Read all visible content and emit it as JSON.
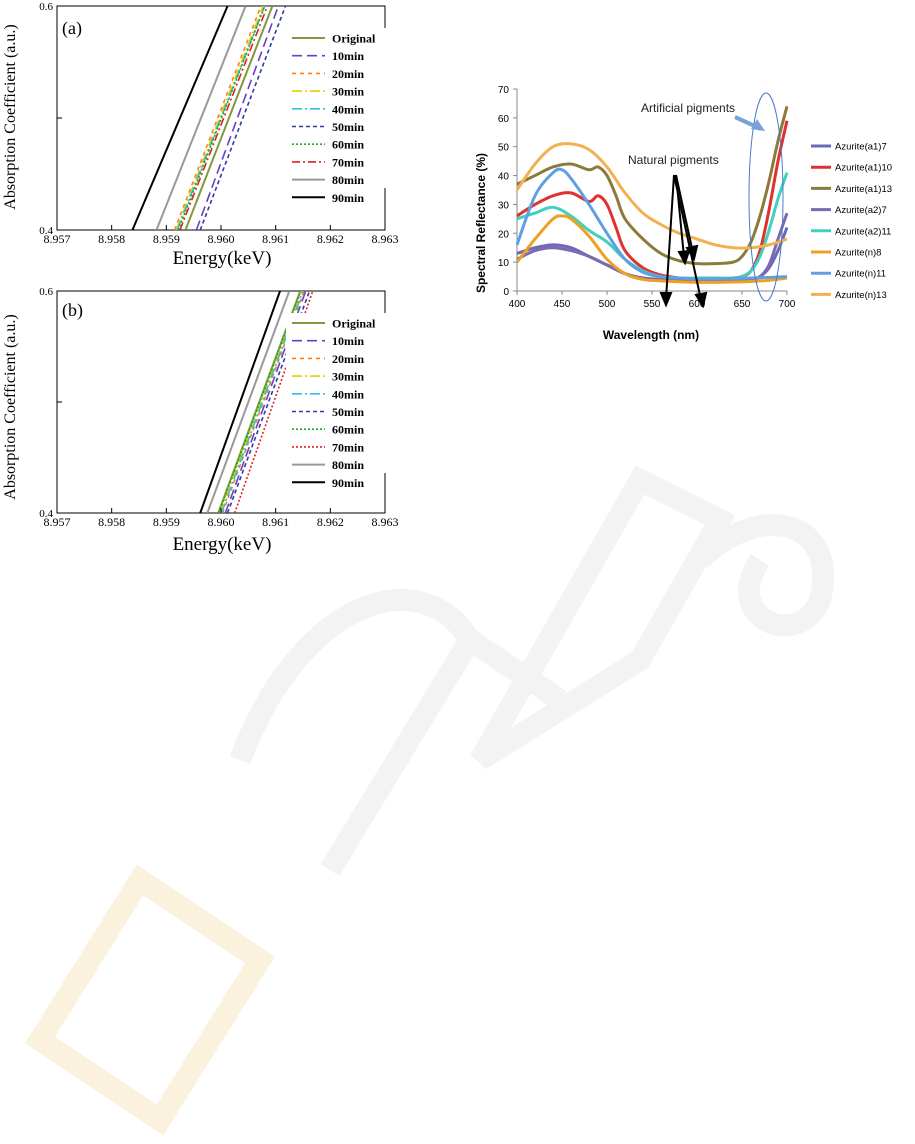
{
  "chart_data": [
    {
      "type": "line",
      "panel_label": "(a)",
      "xlabel": "Energy(keV)",
      "ylabel": "Absorption Coefficient (a.u.)",
      "xlim": [
        8.957,
        8.963
      ],
      "ylim": [
        0.4,
        0.6
      ],
      "x_ticks": [
        "8.957",
        "8.958",
        "8.959",
        "8.960",
        "8.961",
        "8.962",
        "8.963"
      ],
      "y_ticks": [
        "0.4",
        "0.6"
      ],
      "legend_position": "right",
      "series": [
        {
          "name": "Original",
          "x": [
            8.95935,
            8.96094
          ],
          "y": [
            0.4,
            0.6
          ],
          "color": "#7f9a3c",
          "dash": "solid",
          "width": 2
        },
        {
          "name": "10min",
          "x": [
            8.95955,
            8.96105
          ],
          "y": [
            0.4,
            0.6
          ],
          "color": "#6a3fc8",
          "dash": "10,5",
          "width": 1.6
        },
        {
          "name": "20min",
          "x": [
            8.95915,
            8.96073
          ],
          "y": [
            0.4,
            0.6
          ],
          "color": "#ff7f1e",
          "dash": "4,4",
          "width": 1.6
        },
        {
          "name": "30min",
          "x": [
            8.95918,
            8.96077
          ],
          "y": [
            0.4,
            0.6
          ],
          "color": "#e0d000",
          "dash": "10,3,2,3",
          "width": 1.6
        },
        {
          "name": "40min",
          "x": [
            8.9592,
            8.9608
          ],
          "y": [
            0.4,
            0.6
          ],
          "color": "#30c0e0",
          "dash": "10,3,2,3",
          "width": 1.6
        },
        {
          "name": "50min",
          "x": [
            8.95962,
            8.96118
          ],
          "y": [
            0.4,
            0.6
          ],
          "color": "#2a3f9e",
          "dash": "4,3",
          "width": 1.6
        },
        {
          "name": "60min",
          "x": [
            8.95922,
            8.9608
          ],
          "y": [
            0.4,
            0.6
          ],
          "color": "#22a822",
          "dash": "2,2",
          "width": 1.6
        },
        {
          "name": "70min",
          "x": [
            8.95925,
            8.96085
          ],
          "y": [
            0.4,
            0.6
          ],
          "color": "#e02020",
          "dash": "8,3,2,3",
          "width": 1.6
        },
        {
          "name": "80min",
          "x": [
            8.95882,
            8.96045
          ],
          "y": [
            0.4,
            0.6
          ],
          "color": "#999999",
          "dash": "solid",
          "width": 2
        },
        {
          "name": "90min",
          "x": [
            8.95838,
            8.96012
          ],
          "y": [
            0.4,
            0.6
          ],
          "color": "#000000",
          "dash": "solid",
          "width": 2
        }
      ]
    },
    {
      "type": "line",
      "panel_label": "(b)",
      "xlabel": "Energy(keV)",
      "ylabel": "Absorption Coefficient (a.u.)",
      "xlim": [
        8.957,
        8.963
      ],
      "ylim": [
        0.4,
        0.6
      ],
      "x_ticks": [
        "8.957",
        "8.958",
        "8.959",
        "8.960",
        "8.961",
        "8.962",
        "8.963"
      ],
      "y_ticks": [
        "0.4",
        "0.6"
      ],
      "legend_position": "right",
      "series": [
        {
          "name": "Original",
          "x": [
            8.95995,
            8.96145
          ],
          "y": [
            0.4,
            0.6
          ],
          "color": "#7f9a3c",
          "dash": "solid",
          "width": 2
        },
        {
          "name": "10min",
          "x": [
            8.96008,
            8.96155
          ],
          "y": [
            0.4,
            0.6
          ],
          "color": "#6a3fc8",
          "dash": "10,5",
          "width": 1.6
        },
        {
          "name": "20min",
          "x": [
            8.96003,
            8.96152
          ],
          "y": [
            0.4,
            0.6
          ],
          "color": "#ff7f1e",
          "dash": "4,4",
          "width": 1.6
        },
        {
          "name": "30min",
          "x": [
            8.95998,
            8.96148
          ],
          "y": [
            0.4,
            0.6
          ],
          "color": "#e0d000",
          "dash": "10,3,2,3",
          "width": 1.6
        },
        {
          "name": "40min",
          "x": [
            8.96001,
            8.9615
          ],
          "y": [
            0.4,
            0.6
          ],
          "color": "#30c0e0",
          "dash": "10,3,2,3",
          "width": 1.6
        },
        {
          "name": "50min",
          "x": [
            8.96012,
            8.96162
          ],
          "y": [
            0.4,
            0.6
          ],
          "color": "#2a3f9e",
          "dash": "4,3",
          "width": 1.6
        },
        {
          "name": "60min",
          "x": [
            8.95996,
            8.96146
          ],
          "y": [
            0.4,
            0.6
          ],
          "color": "#22a822",
          "dash": "2,2",
          "width": 1.6
        },
        {
          "name": "70min",
          "x": [
            8.96025,
            8.96168
          ],
          "y": [
            0.4,
            0.6
          ],
          "color": "#e02020",
          "dash": "2,2",
          "width": 1.6
        },
        {
          "name": "80min",
          "x": [
            8.95975,
            8.96125
          ],
          "y": [
            0.4,
            0.6
          ],
          "color": "#999999",
          "dash": "solid",
          "width": 2
        },
        {
          "name": "90min",
          "x": [
            8.95962,
            8.96108
          ],
          "y": [
            0.4,
            0.6
          ],
          "color": "#000000",
          "dash": "solid",
          "width": 2
        }
      ]
    },
    {
      "type": "line",
      "xlabel": "Wavelength (nm)",
      "ylabel": "Spectral Reflectance  (%)",
      "xlim": [
        400,
        700
      ],
      "ylim": [
        0,
        70
      ],
      "x_ticks": [
        "400",
        "450",
        "500",
        "550",
        "600",
        "650",
        "700"
      ],
      "y_ticks": [
        "0",
        "10",
        "20",
        "30",
        "40",
        "50",
        "60",
        "70"
      ],
      "legend_position": "right",
      "annotations": [
        {
          "text": "Artificial pigments"
        },
        {
          "text": "Natural pigments"
        }
      ],
      "series": [
        {
          "name": "Azurite(a1)7",
          "color": "#6a6ab8",
          "x": [
            400,
            420,
            440,
            460,
            480,
            500,
            520,
            540,
            560,
            580,
            600,
            620,
            640,
            660,
            670,
            680,
            690,
            700
          ],
          "y": [
            13,
            15,
            16,
            15,
            12,
            9,
            6,
            4.5,
            4,
            3.8,
            3.8,
            3.8,
            3.8,
            4,
            5,
            8,
            14,
            22
          ]
        },
        {
          "name": "Azurite(a1)10",
          "color": "#e03030",
          "x": [
            400,
            420,
            440,
            460,
            480,
            490,
            500,
            510,
            520,
            540,
            560,
            580,
            600,
            620,
            640,
            650,
            660,
            670,
            680,
            690,
            700
          ],
          "y": [
            26,
            30,
            33,
            34,
            31,
            33,
            30,
            22,
            14,
            8,
            5.5,
            4.5,
            4,
            4,
            4.5,
            5,
            7,
            14,
            28,
            45,
            59
          ]
        },
        {
          "name": "Azurite(a1)13",
          "color": "#8b7a3a",
          "x": [
            400,
            420,
            440,
            460,
            480,
            490,
            500,
            510,
            520,
            540,
            560,
            580,
            600,
            620,
            640,
            650,
            660,
            670,
            680,
            690,
            700
          ],
          "y": [
            37,
            40,
            43,
            44,
            42,
            43,
            40,
            33,
            25,
            18,
            13,
            10.5,
            9.5,
            9.5,
            10,
            12,
            17,
            26,
            38,
            52,
            64
          ]
        },
        {
          "name": "Azurite(a2)7",
          "color": "#7a6ab0",
          "x": [
            400,
            420,
            440,
            460,
            480,
            500,
            520,
            540,
            560,
            580,
            600,
            620,
            640,
            660,
            670,
            680,
            690,
            700
          ],
          "y": [
            11,
            14,
            15,
            14,
            12,
            9,
            6,
            4.5,
            4,
            3.8,
            3.8,
            3.8,
            3.8,
            4,
            5,
            9,
            18,
            27
          ]
        },
        {
          "name": "Azurite(a2)11",
          "color": "#40d0c0",
          "x": [
            400,
            420,
            440,
            460,
            480,
            500,
            520,
            540,
            560,
            580,
            600,
            620,
            640,
            650,
            660,
            670,
            680,
            690,
            700
          ],
          "y": [
            25,
            27,
            29,
            26,
            21,
            17,
            11,
            7,
            5,
            4.5,
            4.5,
            4.5,
            4.5,
            5,
            7,
            12,
            21,
            32,
            41
          ]
        },
        {
          "name": "Azurite(n)8",
          "color": "#f0a020",
          "x": [
            400,
            420,
            440,
            450,
            460,
            480,
            500,
            520,
            540,
            560,
            580,
            600,
            620,
            640,
            660,
            680,
            700
          ],
          "y": [
            10,
            18,
            25,
            26,
            25,
            19,
            11,
            6,
            4,
            3.5,
            3.2,
            3,
            3,
            3.1,
            3.3,
            3.7,
            4.5
          ]
        },
        {
          "name": "Azurite(n)11",
          "color": "#60a0e0",
          "x": [
            400,
            420,
            440,
            450,
            460,
            480,
            500,
            520,
            540,
            560,
            580,
            600,
            620,
            640,
            660,
            680,
            700
          ],
          "y": [
            16,
            33,
            41,
            42,
            39,
            30,
            20,
            11,
            6.5,
            5,
            4.5,
            4.2,
            4.2,
            4.3,
            4.5,
            4.7,
            5
          ]
        },
        {
          "name": "Azurite(n)13",
          "color": "#f4b050",
          "x": [
            400,
            420,
            440,
            460,
            480,
            500,
            520,
            540,
            560,
            580,
            600,
            620,
            640,
            660,
            680,
            700
          ],
          "y": [
            35,
            44,
            50,
            51,
            49,
            43,
            34,
            27,
            23,
            20,
            18,
            16,
            15,
            15,
            16,
            18
          ]
        }
      ]
    }
  ]
}
